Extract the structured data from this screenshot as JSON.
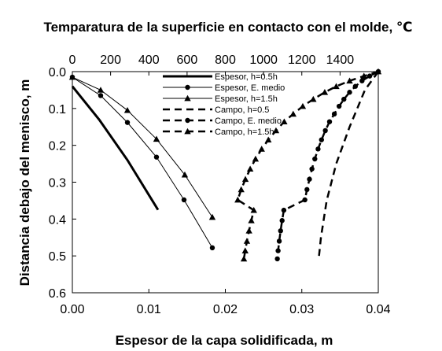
{
  "chart_data": {
    "type": "line",
    "title": "Temparatura de la superficie en contacto con el molde, ℃",
    "xlabel": "Espesor de la capa solidificada, m",
    "ylabel": "Distancia debajo del menisco, m",
    "x_bottom": {
      "min": 0,
      "max": 0.04,
      "ticks": [
        "0.00",
        "0.01",
        "0.02",
        "0.03",
        "0.04"
      ]
    },
    "x_top": {
      "min": 0,
      "max": 1600,
      "ticks": [
        "0",
        "200",
        "400",
        "600",
        "800",
        "1000",
        "1200",
        "1400"
      ]
    },
    "y": {
      "min": 0,
      "max": 0.6,
      "inverted": true,
      "ticks": [
        "0.0",
        "0.1",
        "0.2",
        "0.3",
        "0.4",
        "0.5",
        "0.6"
      ]
    },
    "grid": false,
    "legend_position": "top-right",
    "series": [
      {
        "name": "Espesor, h=0.5h",
        "axis": "bottom",
        "style": "solid-thick",
        "marker": "none",
        "points": [
          [
            0,
            0.04
          ],
          [
            0.0035,
            0.13
          ],
          [
            0.0072,
            0.24
          ],
          [
            0.0112,
            0.375
          ]
        ]
      },
      {
        "name": "Espesor, E. medio",
        "axis": "bottom",
        "style": "solid-thin",
        "marker": "circle",
        "points": [
          [
            0,
            0.015
          ],
          [
            0.0037,
            0.065
          ],
          [
            0.0072,
            0.138
          ],
          [
            0.011,
            0.232
          ],
          [
            0.0146,
            0.348
          ],
          [
            0.0183,
            0.478
          ]
        ]
      },
      {
        "name": "Espesor, h=1.5h",
        "axis": "bottom",
        "style": "solid-thin",
        "marker": "triangle",
        "points": [
          [
            0,
            0.015
          ],
          [
            0.0037,
            0.05
          ],
          [
            0.0072,
            0.105
          ],
          [
            0.011,
            0.183
          ],
          [
            0.0147,
            0.28
          ],
          [
            0.0183,
            0.395
          ]
        ]
      },
      {
        "name": "Campo, h=0.5",
        "axis": "top",
        "style": "dashed",
        "marker": "none",
        "points": [
          [
            1600,
            0.0
          ],
          [
            1530,
            0.05
          ],
          [
            1450,
            0.15
          ],
          [
            1380,
            0.25
          ],
          [
            1330,
            0.35
          ],
          [
            1300,
            0.45
          ],
          [
            1290,
            0.5
          ]
        ]
      },
      {
        "name": "Campo, E. medio",
        "axis": "top",
        "style": "dashed",
        "marker": "circle",
        "points": [
          [
            1600,
            0.0
          ],
          [
            1555,
            0.012
          ],
          [
            1515,
            0.025
          ],
          [
            1480,
            0.04
          ],
          [
            1450,
            0.056
          ],
          [
            1420,
            0.075
          ],
          [
            1395,
            0.094
          ],
          [
            1370,
            0.115
          ],
          [
            1345,
            0.136
          ],
          [
            1323,
            0.16
          ],
          [
            1303,
            0.185
          ],
          [
            1285,
            0.21
          ],
          [
            1268,
            0.237
          ],
          [
            1253,
            0.264
          ],
          [
            1240,
            0.292
          ],
          [
            1227,
            0.32
          ],
          [
            1216,
            0.348
          ],
          [
            1106,
            0.376
          ],
          [
            1097,
            0.404
          ],
          [
            1089,
            0.432
          ],
          [
            1082,
            0.46
          ],
          [
            1076,
            0.486
          ],
          [
            1072,
            0.508
          ]
        ]
      },
      {
        "name": "Campo, h=1.5h",
        "axis": "top",
        "style": "dashed",
        "marker": "triangle",
        "points": [
          [
            1600,
            0.0
          ],
          [
            1525,
            0.012
          ],
          [
            1450,
            0.025
          ],
          [
            1380,
            0.04
          ],
          [
            1320,
            0.056
          ],
          [
            1260,
            0.075
          ],
          [
            1205,
            0.094
          ],
          [
            1155,
            0.115
          ],
          [
            1108,
            0.136
          ],
          [
            1065,
            0.16
          ],
          [
            1025,
            0.185
          ],
          [
            990,
            0.21
          ],
          [
            958,
            0.237
          ],
          [
            930,
            0.264
          ],
          [
            905,
            0.292
          ],
          [
            883,
            0.32
          ],
          [
            865,
            0.348
          ],
          [
            949,
            0.376
          ],
          [
            936,
            0.404
          ],
          [
            924,
            0.432
          ],
          [
            913,
            0.46
          ],
          [
            904,
            0.486
          ],
          [
            897,
            0.508
          ]
        ]
      }
    ]
  }
}
